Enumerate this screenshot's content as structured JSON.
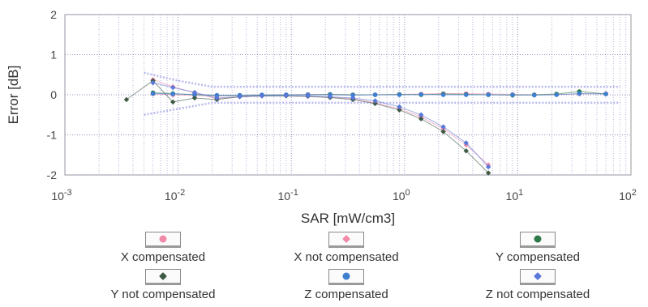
{
  "chart_data": {
    "type": "scatter",
    "xlabel": "SAR [mW/cm3]",
    "ylabel": "Error [dB]",
    "xscale": "log",
    "xlim": [
      0.001,
      100
    ],
    "ylim": [
      -2,
      2
    ],
    "x_ticks": [
      {
        "base": "10",
        "exp": "-3"
      },
      {
        "base": "10",
        "exp": "-2"
      },
      {
        "base": "10",
        "exp": "-1"
      },
      {
        "base": "10",
        "exp": "0"
      },
      {
        "base": "10",
        "exp": "1"
      },
      {
        "base": "10",
        "exp": "2"
      }
    ],
    "y_ticks": [
      "2",
      "1",
      "0",
      "-1",
      "-2"
    ],
    "y_tick_values": [
      2,
      1,
      0,
      -1,
      -2
    ],
    "grid": true,
    "legend_position": "bottom",
    "uncertainty_band": {
      "upper": 0.2,
      "lower": -0.2,
      "funnel_upper": [
        [
          0.005,
          0.55
        ],
        [
          0.01,
          0.35
        ],
        [
          0.02,
          0.2
        ]
      ],
      "funnel_lower": [
        [
          0.005,
          -0.5
        ],
        [
          0.01,
          -0.35
        ],
        [
          0.02,
          -0.2
        ]
      ],
      "color": "#b8b8ee"
    },
    "series": [
      {
        "name": "X compensated",
        "marker": "circle",
        "color": "#f08aa8",
        "x": [
          0.006,
          0.009,
          0.014,
          0.022,
          0.035,
          0.055,
          0.09,
          0.14,
          0.22,
          0.35,
          0.55,
          0.9,
          1.4,
          2.2,
          3.5,
          5.5,
          9,
          14,
          22,
          35,
          60
        ],
        "y": [
          0.02,
          0.0,
          -0.02,
          -0.03,
          -0.02,
          -0.01,
          0.0,
          0.01,
          0.01,
          0.0,
          0.0,
          0.01,
          0.02,
          0.03,
          0.03,
          0.02,
          0.01,
          0.0,
          0.01,
          0.02,
          0.03
        ]
      },
      {
        "name": "X not compensated",
        "marker": "diamond",
        "color": "#f08aa8",
        "x": [
          0.006,
          0.009,
          0.014,
          0.022,
          0.035,
          0.055,
          0.09,
          0.14,
          0.22,
          0.35,
          0.55,
          0.9,
          1.4,
          2.2,
          3.5,
          5.5
        ],
        "y": [
          0.38,
          0.2,
          0.05,
          -0.1,
          -0.05,
          -0.03,
          -0.03,
          -0.04,
          -0.06,
          -0.1,
          -0.2,
          -0.35,
          -0.55,
          -0.85,
          -1.25,
          -1.75
        ]
      },
      {
        "name": "Y compensated",
        "marker": "circle",
        "color": "#2e7a4a",
        "x": [
          0.006,
          0.009,
          0.014,
          0.022,
          0.035,
          0.055,
          0.09,
          0.14,
          0.22,
          0.35,
          0.55,
          0.9,
          1.4,
          2.2,
          3.5,
          5.5,
          9,
          14,
          22,
          35,
          60
        ],
        "y": [
          0.05,
          0.03,
          0.0,
          -0.02,
          -0.02,
          -0.01,
          0.0,
          0.0,
          0.01,
          0.0,
          0.0,
          0.01,
          0.0,
          0.02,
          0.01,
          0.0,
          -0.01,
          0.0,
          0.02,
          0.08,
          0.02
        ]
      },
      {
        "name": "Y not compensated",
        "marker": "diamond",
        "color": "#3d5a45",
        "x": [
          0.0035,
          0.006,
          0.009,
          0.014,
          0.022,
          0.035,
          0.055,
          0.09,
          0.14,
          0.22,
          0.35,
          0.55,
          0.9,
          1.4,
          2.2,
          3.5,
          5.5
        ],
        "y": [
          -0.12,
          0.35,
          -0.18,
          -0.08,
          -0.12,
          -0.05,
          -0.03,
          -0.03,
          -0.04,
          -0.07,
          -0.12,
          -0.22,
          -0.38,
          -0.6,
          -0.92,
          -1.4,
          -1.95
        ]
      },
      {
        "name": "Z compensated",
        "marker": "circle",
        "color": "#3f7fd0",
        "x": [
          0.006,
          0.009,
          0.014,
          0.022,
          0.035,
          0.055,
          0.09,
          0.14,
          0.22,
          0.35,
          0.55,
          0.9,
          1.4,
          2.2,
          3.5,
          5.5,
          9,
          14,
          22,
          35,
          60
        ],
        "y": [
          0.03,
          0.02,
          0.01,
          -0.01,
          -0.01,
          0.0,
          0.0,
          0.0,
          0.0,
          -0.01,
          0.0,
          0.0,
          0.01,
          0.0,
          0.0,
          0.0,
          0.0,
          -0.01,
          0.0,
          0.03,
          0.02
        ]
      },
      {
        "name": "Z not compensated",
        "marker": "diamond",
        "color": "#5a78d8",
        "x": [
          0.006,
          0.009,
          0.014,
          0.022,
          0.035,
          0.055,
          0.09,
          0.14,
          0.22,
          0.35,
          0.55,
          0.9,
          1.4,
          2.2,
          3.5,
          5.5
        ],
        "y": [
          0.3,
          0.18,
          0.06,
          -0.08,
          -0.05,
          -0.03,
          -0.02,
          -0.03,
          -0.05,
          -0.08,
          -0.15,
          -0.3,
          -0.5,
          -0.8,
          -1.2,
          -1.8
        ]
      }
    ]
  }
}
